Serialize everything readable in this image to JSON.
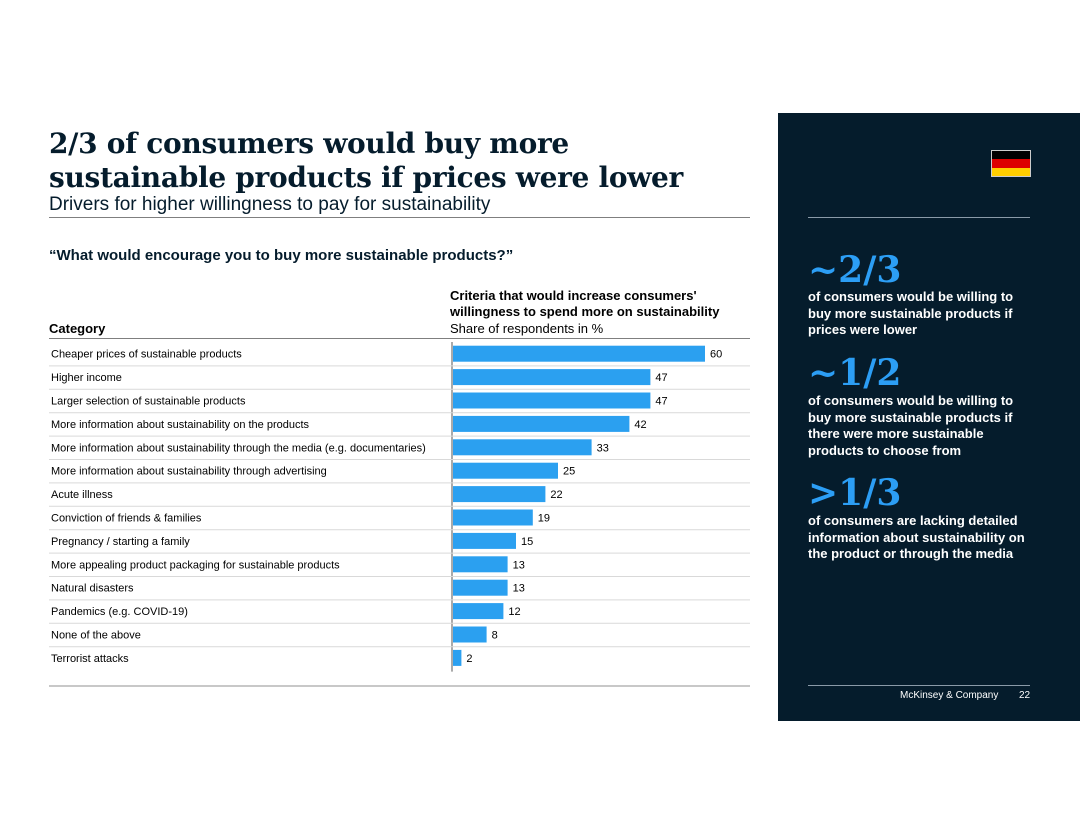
{
  "slide": {
    "title": "2/3 of consumers would buy more sustainable products if prices were lower",
    "subtitle": "Drivers for higher willingness to pay for sustainability",
    "question": "“What would encourage you to buy more sustainable products?”",
    "category_header": "Category",
    "criteria_header": "Criteria that would increase consumers' willingness to spend more on sustainability",
    "criteria_subheader": "Share of respondents in %"
  },
  "chart_data": {
    "type": "bar",
    "orientation": "horizontal",
    "title": "Criteria that would increase consumers' willingness to spend more on sustainability",
    "xlabel": "Share of respondents in %",
    "ylabel": "Category",
    "xlim": [
      0,
      60
    ],
    "bar_color": "#2ba0f0",
    "categories": [
      "Cheaper prices of sustainable products",
      "Higher income",
      "Larger selection of sustainable products",
      "More information about sustainability on the products",
      "More information about sustainability through the media (e.g. documentaries)",
      "More information about sustainability through advertising",
      "Acute illness",
      "Conviction of friends & families",
      "Pregnancy / starting a family",
      "More appealing product packaging for sustainable products",
      "Natural disasters",
      "Pandemics (e.g. COVID-19)",
      "None of the above",
      "Terrorist attacks"
    ],
    "values": [
      60,
      47,
      47,
      42,
      33,
      25,
      22,
      19,
      15,
      13,
      13,
      12,
      8,
      2
    ]
  },
  "panel": {
    "flag_colors": [
      "#000000",
      "#dd0000",
      "#ffce00"
    ],
    "accent_color": "#2c9ef5",
    "stats": [
      {
        "value": "~2/3",
        "text": "of consumers would be willing to buy more sustainable products if prices were lower"
      },
      {
        "value": "~1/2",
        "text": "of consumers would be willing to buy more sustainable products if there were more sustainable products to choose from"
      },
      {
        "value": ">1/3",
        "text": "of consumers are lacking detailed information about sustainability on the product or through the media"
      }
    ]
  },
  "footer": {
    "brand": "McKinsey & Company",
    "page": "22"
  }
}
